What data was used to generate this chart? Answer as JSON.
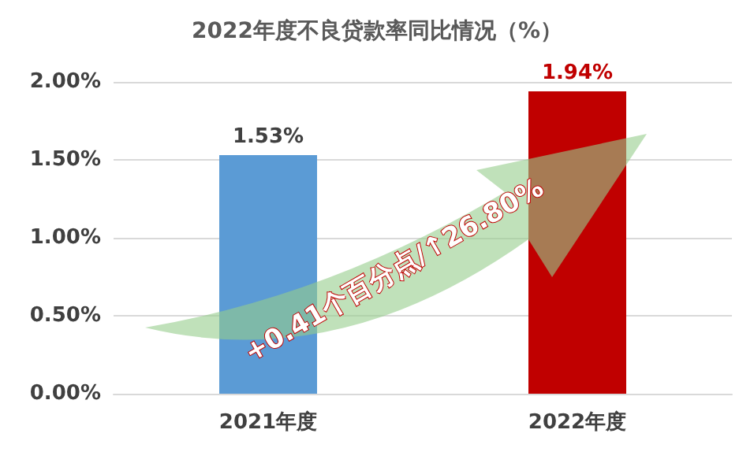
{
  "chart_data": {
    "type": "bar",
    "title": "2022年度不良贷款率同比情况（%）",
    "categories": [
      "2021年度",
      "2022年度"
    ],
    "values": [
      1.53,
      1.94
    ],
    "colors": [
      "#5b9bd5",
      "#c00000"
    ],
    "value_labels": [
      "1.53%",
      "1.94%"
    ],
    "ylim": [
      0,
      2
    ],
    "yticks": [
      {
        "value": 0,
        "label": "0.00%"
      },
      {
        "value": 0.5,
        "label": "0.50%"
      },
      {
        "value": 1,
        "label": "1.00%"
      },
      {
        "value": 1.5,
        "label": "1.50%"
      },
      {
        "value": 2,
        "label": "2.00%"
      }
    ],
    "grid": "y",
    "annotations": [
      "+0.41个百分点/↑26.80%"
    ]
  }
}
